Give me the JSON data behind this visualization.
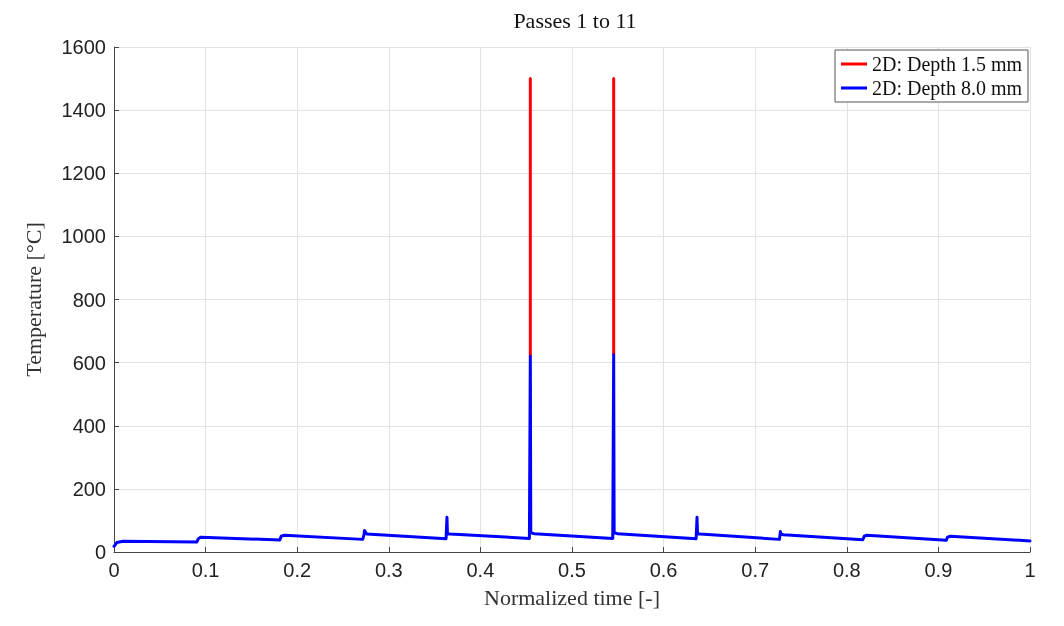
{
  "chart_data": {
    "type": "line",
    "title": "Passes 1 to 11",
    "xlabel": "Normalized time [-]",
    "ylabel": "Temperature [°C]",
    "xlim": [
      0,
      1
    ],
    "xticks": [
      0,
      0.1,
      0.2,
      0.3,
      0.4,
      0.5,
      0.6,
      0.7,
      0.8,
      0.9,
      1
    ],
    "ylim": [
      0,
      1600
    ],
    "yticks": [
      0,
      200,
      400,
      600,
      800,
      1000,
      1200,
      1400,
      1600
    ],
    "grid": true,
    "legend": "top right",
    "marker": "none",
    "line_style": "solid",
    "series": [
      {
        "name": "2D: Depth 1.5 mm",
        "color": "#ff0000",
        "x": [
          0.4545,
          0.4545,
          0.5,
          0.5455,
          0.5455
        ],
        "values": [
          620,
          1500,
          null,
          625,
          1500
        ]
      },
      {
        "name": "2D: Depth 8.0 mm",
        "color": "#0000ff",
        "x": [
          0,
          0.003,
          0.01,
          0.0905,
          0.092,
          0.095,
          0.181,
          0.1825,
          0.186,
          0.2715,
          0.273,
          0.2735,
          0.276,
          0.3625,
          0.3635,
          0.364,
          0.3645,
          0.367,
          0.4535,
          0.4545,
          0.455,
          0.456,
          0.459,
          0.5445,
          0.5455,
          0.546,
          0.547,
          0.55,
          0.6355,
          0.6365,
          0.637,
          0.6375,
          0.64,
          0.7265,
          0.7275,
          0.728,
          0.731,
          0.8175,
          0.819,
          0.822,
          0.9085,
          0.91,
          0.913,
          1
        ],
        "values": [
          18,
          30,
          34,
          32,
          42,
          47,
          38,
          50,
          53,
          40,
          55,
          68,
          57,
          42,
          110,
          60,
          58,
          57,
          43,
          620,
          62,
          60,
          58,
          43,
          625,
          62,
          60,
          58,
          42,
          110,
          60,
          58,
          57,
          40,
          65,
          56,
          55,
          39,
          50,
          53,
          37,
          47,
          50,
          35
        ]
      }
    ]
  }
}
